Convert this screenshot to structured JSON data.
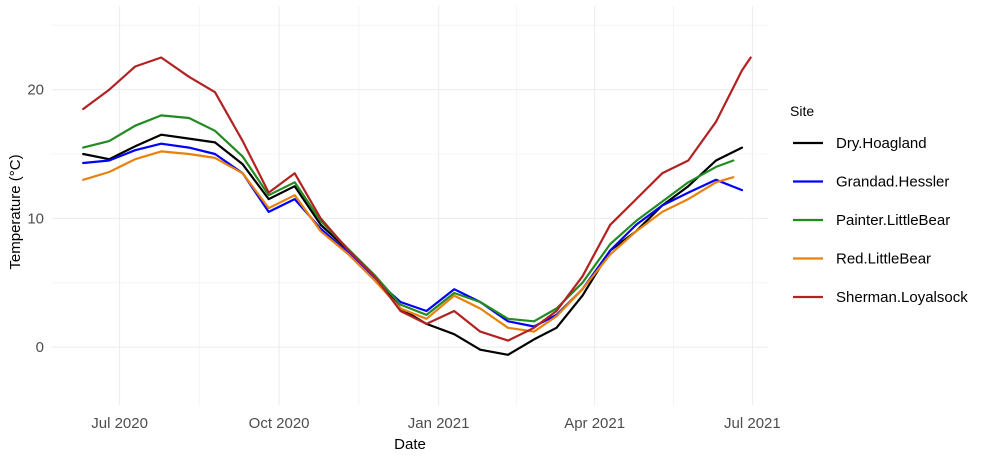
{
  "chart_data": {
    "type": "line",
    "xlabel": "Date",
    "ylabel": "Temperature (°C)",
    "xlim": [
      "2020-05-23",
      "2021-07-10"
    ],
    "ylim": [
      -4.5,
      26.5
    ],
    "x_ticks": [
      "2020-07-01",
      "2020-10-01",
      "2021-01-01",
      "2021-04-01",
      "2021-07-01"
    ],
    "x_tick_labels": [
      "Jul 2020",
      "Oct 2020",
      "Jan 2021",
      "Apr 2021",
      "Jul 2021"
    ],
    "y_ticks": [
      0,
      10,
      20
    ],
    "y_tick_labels": [
      "0",
      "10",
      "20"
    ],
    "grid": true,
    "legend": {
      "title": "Site",
      "position": "right"
    },
    "series": [
      {
        "name": "Dry.Hoagland",
        "color": "#000000",
        "points": [
          [
            "2020-06-10",
            15.0
          ],
          [
            "2020-06-25",
            14.6
          ],
          [
            "2020-07-10",
            15.6
          ],
          [
            "2020-07-25",
            16.5
          ],
          [
            "2020-08-10",
            16.2
          ],
          [
            "2020-08-25",
            15.9
          ],
          [
            "2020-09-10",
            14.2
          ],
          [
            "2020-09-25",
            11.5
          ],
          [
            "2020-10-10",
            12.5
          ],
          [
            "2020-10-25",
            9.5
          ],
          [
            "2020-11-10",
            7.5
          ],
          [
            "2020-11-25",
            5.5
          ],
          [
            "2020-12-10",
            3.0
          ],
          [
            "2020-12-25",
            1.8
          ],
          [
            "2021-01-10",
            1.0
          ],
          [
            "2021-01-25",
            -0.2
          ],
          [
            "2021-02-10",
            -0.6
          ],
          [
            "2021-02-25",
            0.6
          ],
          [
            "2021-03-10",
            1.5
          ],
          [
            "2021-03-25",
            4.0
          ],
          [
            "2021-04-10",
            7.5
          ],
          [
            "2021-04-25",
            9.0
          ],
          [
            "2021-05-10",
            11.0
          ],
          [
            "2021-05-25",
            12.5
          ],
          [
            "2021-06-10",
            14.5
          ],
          [
            "2021-06-25",
            15.5
          ]
        ]
      },
      {
        "name": "Grandad.Hessler",
        "color": "#0000ff",
        "points": [
          [
            "2020-06-10",
            14.3
          ],
          [
            "2020-06-25",
            14.5
          ],
          [
            "2020-07-10",
            15.3
          ],
          [
            "2020-07-25",
            15.8
          ],
          [
            "2020-08-10",
            15.5
          ],
          [
            "2020-08-25",
            15.0
          ],
          [
            "2020-09-10",
            13.5
          ],
          [
            "2020-09-25",
            10.5
          ],
          [
            "2020-10-10",
            11.5
          ],
          [
            "2020-10-25",
            9.2
          ],
          [
            "2020-11-10",
            7.3
          ],
          [
            "2020-11-25",
            5.3
          ],
          [
            "2020-12-10",
            3.5
          ],
          [
            "2020-12-25",
            2.8
          ],
          [
            "2021-01-10",
            4.5
          ],
          [
            "2021-01-25",
            3.5
          ],
          [
            "2021-02-10",
            2.0
          ],
          [
            "2021-02-25",
            1.6
          ],
          [
            "2021-03-10",
            2.5
          ],
          [
            "2021-03-25",
            4.5
          ],
          [
            "2021-04-10",
            7.5
          ],
          [
            "2021-04-25",
            9.5
          ],
          [
            "2021-05-10",
            11.0
          ],
          [
            "2021-05-25",
            12.0
          ],
          [
            "2021-06-10",
            13.0
          ],
          [
            "2021-06-25",
            12.2
          ]
        ]
      },
      {
        "name": "Painter.LittleBear",
        "color": "#228b22",
        "points": [
          [
            "2020-06-10",
            15.5
          ],
          [
            "2020-06-25",
            16.0
          ],
          [
            "2020-07-10",
            17.2
          ],
          [
            "2020-07-25",
            18.0
          ],
          [
            "2020-08-10",
            17.8
          ],
          [
            "2020-08-25",
            16.8
          ],
          [
            "2020-09-10",
            14.8
          ],
          [
            "2020-09-25",
            11.8
          ],
          [
            "2020-10-10",
            12.8
          ],
          [
            "2020-10-25",
            9.8
          ],
          [
            "2020-11-10",
            7.6
          ],
          [
            "2020-11-25",
            5.6
          ],
          [
            "2020-12-10",
            3.3
          ],
          [
            "2020-12-25",
            2.5
          ],
          [
            "2021-01-10",
            4.2
          ],
          [
            "2021-01-25",
            3.5
          ],
          [
            "2021-02-10",
            2.2
          ],
          [
            "2021-02-25",
            2.0
          ],
          [
            "2021-03-10",
            3.0
          ],
          [
            "2021-03-25",
            5.0
          ],
          [
            "2021-04-10",
            8.0
          ],
          [
            "2021-04-25",
            9.8
          ],
          [
            "2021-05-10",
            11.3
          ],
          [
            "2021-05-25",
            12.8
          ],
          [
            "2021-06-10",
            14.0
          ],
          [
            "2021-06-20",
            14.5
          ]
        ]
      },
      {
        "name": "Red.LittleBear",
        "color": "#e8820c",
        "points": [
          [
            "2020-06-10",
            13.0
          ],
          [
            "2020-06-25",
            13.6
          ],
          [
            "2020-07-10",
            14.6
          ],
          [
            "2020-07-25",
            15.2
          ],
          [
            "2020-08-10",
            15.0
          ],
          [
            "2020-08-25",
            14.7
          ],
          [
            "2020-09-10",
            13.5
          ],
          [
            "2020-09-25",
            10.8
          ],
          [
            "2020-10-10",
            11.8
          ],
          [
            "2020-10-25",
            9.0
          ],
          [
            "2020-11-10",
            7.2
          ],
          [
            "2020-11-25",
            5.2
          ],
          [
            "2020-12-10",
            3.0
          ],
          [
            "2020-12-25",
            2.2
          ],
          [
            "2021-01-10",
            4.0
          ],
          [
            "2021-01-25",
            3.0
          ],
          [
            "2021-02-10",
            1.5
          ],
          [
            "2021-02-25",
            1.2
          ],
          [
            "2021-03-10",
            2.4
          ],
          [
            "2021-03-25",
            4.5
          ],
          [
            "2021-04-10",
            7.2
          ],
          [
            "2021-04-25",
            9.0
          ],
          [
            "2021-05-10",
            10.5
          ],
          [
            "2021-05-25",
            11.5
          ],
          [
            "2021-06-10",
            12.8
          ],
          [
            "2021-06-20",
            13.2
          ]
        ]
      },
      {
        "name": "Sherman.Loyalsock",
        "color": "#b22222",
        "points": [
          [
            "2020-06-10",
            18.5
          ],
          [
            "2020-06-25",
            20.0
          ],
          [
            "2020-07-10",
            21.8
          ],
          [
            "2020-07-25",
            22.5
          ],
          [
            "2020-08-10",
            21.0
          ],
          [
            "2020-08-25",
            19.8
          ],
          [
            "2020-09-10",
            16.0
          ],
          [
            "2020-09-25",
            12.0
          ],
          [
            "2020-10-10",
            13.5
          ],
          [
            "2020-10-25",
            10.0
          ],
          [
            "2020-11-10",
            7.5
          ],
          [
            "2020-11-25",
            5.5
          ],
          [
            "2020-12-10",
            2.8
          ],
          [
            "2020-12-25",
            1.8
          ],
          [
            "2021-01-10",
            2.8
          ],
          [
            "2021-01-25",
            1.2
          ],
          [
            "2021-02-10",
            0.5
          ],
          [
            "2021-02-25",
            1.5
          ],
          [
            "2021-03-10",
            2.8
          ],
          [
            "2021-03-25",
            5.5
          ],
          [
            "2021-04-10",
            9.5
          ],
          [
            "2021-04-25",
            11.5
          ],
          [
            "2021-05-10",
            13.5
          ],
          [
            "2021-05-25",
            14.5
          ],
          [
            "2021-06-10",
            17.5
          ],
          [
            "2021-06-25",
            21.5
          ],
          [
            "2021-06-30",
            22.5
          ]
        ]
      }
    ]
  }
}
